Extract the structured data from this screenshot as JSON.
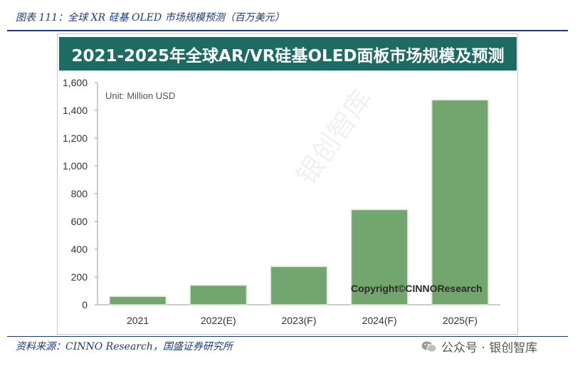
{
  "caption": "图表 111：全球 XR 硅基 OLED 市场规模预测（百万美元）",
  "source": "资料来源：CINNO Research，国盛证券研究所",
  "wechat": {
    "icon": "wechat-icon",
    "text": "公众号 · 银创智库"
  },
  "colors": {
    "bar": "#72a66e",
    "banner": "#1e6b63",
    "rule": "#1f3a78"
  },
  "chart_data": {
    "type": "bar",
    "title": "2021-2025年全球AR/VR硅基OLED面板市场规模及预测",
    "unit_label": "Unit: Million USD",
    "copyright": "Copyright©CINNOResearch",
    "watermark": "银创智库",
    "categories": [
      "2021",
      "2022(E)",
      "2023(F)",
      "2024(F)",
      "2025(F)"
    ],
    "values": [
      60,
      140,
      275,
      685,
      1475
    ],
    "ylim": [
      0,
      1600
    ],
    "yticks": [
      "0",
      "200",
      "400",
      "600",
      "800",
      "1,000",
      "1,200",
      "1,400",
      "1,600"
    ],
    "grid": false,
    "legend": "none"
  }
}
